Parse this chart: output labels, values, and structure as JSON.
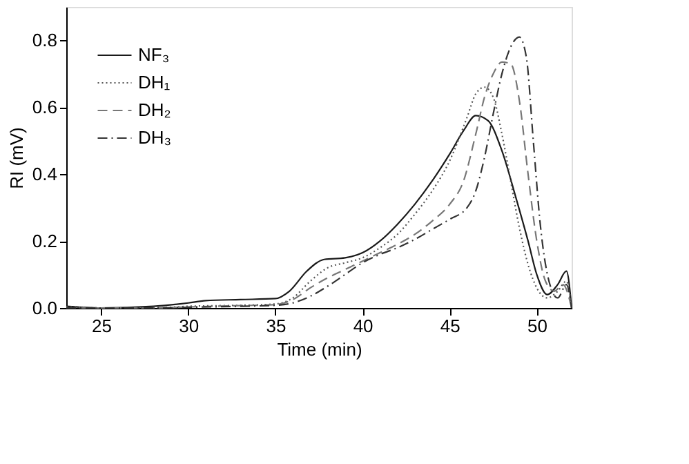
{
  "chart_data": {
    "type": "line",
    "xlabel": "Time (min)",
    "ylabel": "RI (mV)",
    "xlim": [
      23,
      52
    ],
    "ylim": [
      0,
      0.9
    ],
    "xticks": [
      25,
      30,
      35,
      40,
      45,
      50
    ],
    "yticks": [
      {
        "value": 0,
        "label": "0.0"
      },
      {
        "value": 0.2,
        "label": "0.2"
      },
      {
        "value": 0.4,
        "label": "0.4"
      },
      {
        "value": 0.6,
        "label": "0.6"
      },
      {
        "value": 0.8,
        "label": "0.8"
      }
    ],
    "grid": false,
    "legend": "top left",
    "marker": "none",
    "series": [
      {
        "name": "NF₃",
        "color": "#1a1a1a",
        "line_style": "solid",
        "x": [
          23,
          25,
          28,
          30,
          31,
          33,
          35,
          35.8,
          36.8,
          37.8,
          39,
          40,
          41,
          42,
          43,
          44,
          45,
          45.8,
          46.5,
          47.2,
          48,
          48.8,
          49.5,
          50,
          50.6,
          51.2,
          51.7,
          52
        ],
        "values": [
          0.005,
          0.0,
          0.005,
          0.015,
          0.022,
          0.025,
          0.028,
          0.05,
          0.11,
          0.145,
          0.15,
          0.165,
          0.2,
          0.25,
          0.31,
          0.38,
          0.46,
          0.53,
          0.575,
          0.56,
          0.47,
          0.33,
          0.2,
          0.1,
          0.04,
          0.07,
          0.11,
          0.0
        ]
      },
      {
        "name": "DH₁",
        "color": "#555555",
        "line_style": "dotted",
        "x": [
          23,
          25,
          28,
          30,
          33,
          35,
          36,
          37,
          38,
          39,
          40,
          41,
          42,
          43,
          44,
          45,
          46,
          46.5,
          47,
          47.5,
          48,
          48.5,
          49,
          49.5,
          50,
          50.6,
          51.2,
          51.7,
          52
        ],
        "values": [
          0.003,
          0.0,
          0.0,
          0.005,
          0.008,
          0.012,
          0.03,
          0.08,
          0.12,
          0.135,
          0.15,
          0.18,
          0.22,
          0.28,
          0.35,
          0.44,
          0.57,
          0.64,
          0.66,
          0.63,
          0.52,
          0.38,
          0.24,
          0.13,
          0.06,
          0.03,
          0.05,
          0.08,
          0.0
        ]
      },
      {
        "name": "DH₂",
        "color": "#777777",
        "line_style": "dashed",
        "x": [
          23,
          25,
          28,
          30,
          33,
          35,
          36,
          37,
          38,
          39,
          40,
          41,
          42,
          43,
          44,
          45,
          45.8,
          46.5,
          47,
          47.5,
          48,
          48.5,
          49,
          49.5,
          50,
          50.5,
          51,
          51.5,
          52
        ],
        "values": [
          0.0,
          0.0,
          0.0,
          0.003,
          0.007,
          0.01,
          0.025,
          0.06,
          0.09,
          0.115,
          0.14,
          0.165,
          0.19,
          0.22,
          0.26,
          0.31,
          0.38,
          0.52,
          0.63,
          0.7,
          0.735,
          0.73,
          0.62,
          0.4,
          0.2,
          0.08,
          0.05,
          0.07,
          0.0
        ]
      },
      {
        "name": "DH₃",
        "color": "#333333",
        "line_style": "dashdot",
        "x": [
          23,
          25,
          28,
          30,
          33,
          35,
          36,
          37,
          38,
          39,
          40,
          41,
          42,
          43,
          44,
          45,
          46,
          46.5,
          47,
          47.5,
          48,
          48.5,
          49,
          49.4,
          49.8,
          50.2,
          50.7,
          51.2,
          51.7,
          52
        ],
        "values": [
          0.0,
          0.0,
          0.0,
          0.002,
          0.005,
          0.008,
          0.015,
          0.035,
          0.065,
          0.1,
          0.135,
          0.16,
          0.18,
          0.205,
          0.235,
          0.265,
          0.3,
          0.35,
          0.45,
          0.58,
          0.7,
          0.78,
          0.81,
          0.75,
          0.5,
          0.25,
          0.08,
          0.03,
          0.07,
          0.0
        ]
      }
    ]
  }
}
